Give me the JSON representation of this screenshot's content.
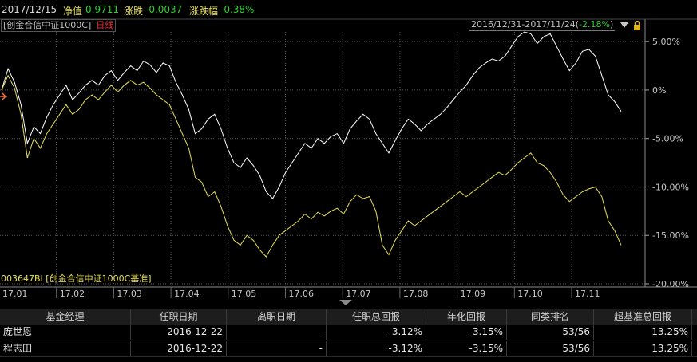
{
  "info_bar": {
    "date": "2017/12/15",
    "nav_label": "净值",
    "nav_value": "0.9711",
    "change_label": "涨跌",
    "change_value": "-0.0037",
    "change_pct_label": "涨跌幅",
    "change_pct_value": "-0.38%"
  },
  "fund_tag": {
    "name": "[创金合信中证1000C]",
    "period": "日线"
  },
  "range_tag": {
    "range": "2016/12/31-2017/11/24(",
    "pct": "-2.18%",
    "close": ")"
  },
  "bench_tag": {
    "label": "003647BI [创金合信中证1000C基准]"
  },
  "colors": {
    "fund_line": "#ffffff",
    "bench_line": "#e8e05a",
    "grid": "#5a5a5a",
    "up": "#e23030",
    "down": "#2ed02e"
  },
  "chart_data": {
    "type": "line",
    "x_ticks": [
      "17.01",
      "17.02",
      "17.03",
      "17.04",
      "17.05",
      "17.06",
      "17.07",
      "17.08",
      "17.09",
      "17.10",
      "17.11"
    ],
    "y_ticks": [
      "5.00%",
      "0%",
      "-5.00%",
      "-10.00%",
      "-15.00%",
      "-20.00%"
    ],
    "ylim": [
      -20,
      6
    ],
    "series": [
      {
        "values": [
          0.0,
          2.2,
          0.8,
          -1.5,
          -5.5,
          -3.8,
          -4.5,
          -2.8,
          -1.5,
          -0.5,
          0.5,
          -1.0,
          -0.3,
          0.5,
          1.0,
          0.5,
          1.5,
          2.0,
          1.0,
          1.8,
          2.5,
          2.0,
          3.0,
          2.6,
          1.8,
          2.8,
          2.5,
          0.8,
          -0.5,
          -2.0,
          -4.5,
          -4.0,
          -3.0,
          -2.5,
          -4.0,
          -6.0,
          -7.5,
          -8.0,
          -7.0,
          -7.8,
          -8.8,
          -10.5,
          -11.2,
          -10.0,
          -8.5,
          -7.5,
          -6.5,
          -5.5,
          -6.0,
          -5.0,
          -5.5,
          -4.8,
          -4.5,
          -5.5,
          -4.0,
          -3.2,
          -2.5,
          -3.0,
          -4.5,
          -5.5,
          -6.5,
          -5.2,
          -4.0,
          -3.0,
          -3.5,
          -4.2,
          -3.5,
          -3.0,
          -2.5,
          -1.8,
          -1.0,
          -0.2,
          0.5,
          1.5,
          2.3,
          2.8,
          3.2,
          3.0,
          3.5,
          4.5,
          5.5,
          6.0,
          5.8,
          4.8,
          5.5,
          5.8,
          4.5,
          3.2,
          2.0,
          2.8,
          4.0,
          4.2,
          3.5,
          1.5,
          -0.5,
          -1.2,
          -2.2
        ]
      },
      {
        "values": [
          0.0,
          1.5,
          0.2,
          -2.5,
          -7.0,
          -5.0,
          -6.0,
          -4.5,
          -3.5,
          -2.5,
          -1.5,
          -2.5,
          -2.0,
          -1.0,
          -0.5,
          -1.0,
          -0.2,
          0.5,
          -0.2,
          0.5,
          1.0,
          0.5,
          0.8,
          0.2,
          -0.5,
          -1.0,
          -1.5,
          -3.0,
          -4.5,
          -6.0,
          -9.0,
          -9.5,
          -11.0,
          -10.5,
          -12.0,
          -14.0,
          -15.5,
          -16.0,
          -15.0,
          -15.5,
          -16.5,
          -17.2,
          -16.0,
          -15.0,
          -14.5,
          -14.0,
          -13.5,
          -12.8,
          -13.3,
          -12.6,
          -13.0,
          -12.5,
          -12.2,
          -12.8,
          -11.5,
          -10.8,
          -11.2,
          -11.0,
          -12.5,
          -16.0,
          -17.0,
          -15.5,
          -14.5,
          -13.5,
          -14.0,
          -13.5,
          -13.0,
          -12.5,
          -12.0,
          -11.5,
          -11.0,
          -10.5,
          -11.0,
          -10.5,
          -10.0,
          -9.5,
          -9.0,
          -8.5,
          -8.8,
          -8.2,
          -7.5,
          -7.0,
          -6.5,
          -7.5,
          -7.8,
          -8.5,
          -9.5,
          -10.8,
          -11.5,
          -11.0,
          -10.5,
          -10.2,
          -10.0,
          -11.0,
          -13.5,
          -14.5,
          -16.0
        ]
      }
    ]
  },
  "table": {
    "headers": [
      "基金经理",
      "任职日期",
      "离职日期",
      "任职总回报",
      "年化回报",
      "同类排名",
      "超基准总回报"
    ],
    "rows": [
      [
        "庞世恩",
        "2016-12-22",
        "-",
        "-3.12%",
        "-3.15%",
        "53/56",
        "13.25%"
      ],
      [
        "程志田",
        "2016-12-22",
        "-",
        "-3.12%",
        "-3.15%",
        "53/56",
        "13.25%"
      ]
    ]
  }
}
